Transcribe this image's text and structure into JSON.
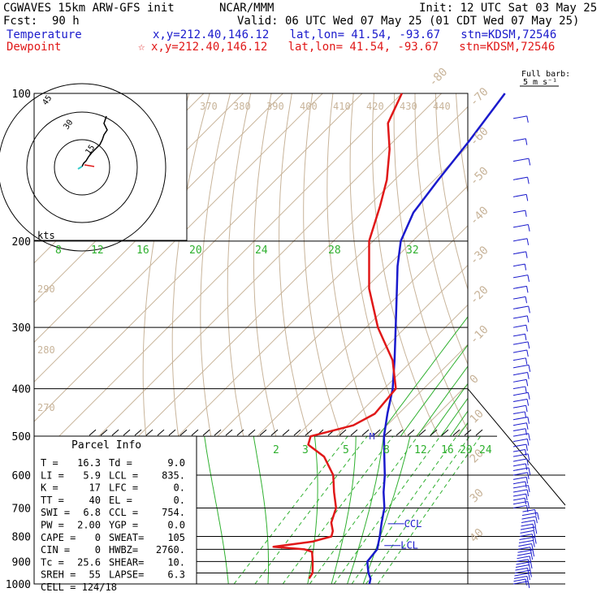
{
  "header": {
    "model": "CGWAVES 15km ARW-GFS init",
    "org": "NCAR/MMM",
    "init": "Init: 12 UTC Sat 03 May 25",
    "fcst_label": "Fcst:",
    "fcst_value": "90 h",
    "valid": "Valid: 06 UTC Wed 07 May 25 (01 CDT Wed 07 May 25)",
    "temp_label": "Temperature",
    "temp_loc": "x,y=212.40,146.12   lat,lon= 41.54, -93.67   stn=KDSM,72546",
    "dew_label": "Dewpoint",
    "dew_star": "☆",
    "dew_loc": "x,y=212.40,146.12   lat,lon= 41.54, -93.67   stn=KDSM,72546"
  },
  "colors": {
    "temperature": "#1a1acc",
    "dewpoint": "#e01818",
    "isotherm": "#c8b49a",
    "dry_adiabat": "#c8b49a",
    "mixing_ratio": "#2fb02f",
    "moist_adiabat": "#2fb02f",
    "isobar": "#000000"
  },
  "chart_data": {
    "type": "line",
    "chart_kind": "skew-T log-P",
    "y_axis": "pressure (hPa), log scale",
    "ylim": [
      1000,
      100
    ],
    "pressure_labels": [
      "100",
      "200",
      "300",
      "400",
      "500",
      "600",
      "700",
      "800",
      "900",
      "1000"
    ],
    "isotherm_labels": [
      "-80",
      "-70",
      "-60",
      "-50",
      "-40",
      "-30",
      "-20",
      "-10",
      "0",
      "10",
      "20",
      "30",
      "40"
    ],
    "theta_labels_top": [
      "370",
      "380",
      "390",
      "400",
      "410",
      "420",
      "430",
      "440"
    ],
    "theta_labels_left": [
      "290",
      "280",
      "270"
    ],
    "mixing_ratio_labels_upper": [
      "8",
      "12",
      "16",
      "20",
      "24",
      "28",
      "32"
    ],
    "mixing_ratio_labels_lower": [
      "2",
      "3",
      "5",
      "8",
      "12",
      "16",
      "20",
      "24"
    ],
    "series": [
      {
        "name": "Temperature",
        "color": "#1a1acc",
        "points": [
          {
            "p": 1000,
            "t": 25.6
          },
          {
            "p": 975,
            "t": 24.5
          },
          {
            "p": 950,
            "t": 22.6
          },
          {
            "p": 925,
            "t": 21.0
          },
          {
            "p": 900,
            "t": 19.4
          },
          {
            "p": 850,
            "t": 18.8
          },
          {
            "p": 800,
            "t": 16.2
          },
          {
            "p": 750,
            "t": 13.2
          },
          {
            "p": 700,
            "t": 10.2
          },
          {
            "p": 650,
            "t": 6.0
          },
          {
            "p": 600,
            "t": 2.0
          },
          {
            "p": 550,
            "t": -2.8
          },
          {
            "p": 500,
            "t": -8.0
          },
          {
            "p": 450,
            "t": -12.8
          },
          {
            "p": 400,
            "t": -17.8
          },
          {
            "p": 350,
            "t": -24.5
          },
          {
            "p": 300,
            "t": -32.5
          },
          {
            "p": 250,
            "t": -42.0
          },
          {
            "p": 225,
            "t": -47.5
          },
          {
            "p": 200,
            "t": -53.0
          },
          {
            "p": 175,
            "t": -57.0
          },
          {
            "p": 150,
            "t": -59.0
          },
          {
            "p": 125,
            "t": -61.0
          },
          {
            "p": 100,
            "t": -64.0
          }
        ]
      },
      {
        "name": "Dewpoint",
        "color": "#e01818",
        "points": [
          {
            "p": 975,
            "t": 9.0
          },
          {
            "p": 950,
            "t": 8.5
          },
          {
            "p": 900,
            "t": 5.6
          },
          {
            "p": 860,
            "t": 3.0
          },
          {
            "p": 850,
            "t": 0.5
          },
          {
            "p": 840,
            "t": -8.0
          },
          {
            "p": 820,
            "t": 0.5
          },
          {
            "p": 800,
            "t": 4.0
          },
          {
            "p": 780,
            "t": 3.0
          },
          {
            "p": 750,
            "t": 0.5
          },
          {
            "p": 700,
            "t": -2.0
          },
          {
            "p": 650,
            "t": -6.5
          },
          {
            "p": 600,
            "t": -11.0
          },
          {
            "p": 550,
            "t": -18.0
          },
          {
            "p": 520,
            "t": -25.0
          },
          {
            "p": 500,
            "t": -26.5
          },
          {
            "p": 475,
            "t": -18.5
          },
          {
            "p": 450,
            "t": -16.0
          },
          {
            "p": 400,
            "t": -17.0
          },
          {
            "p": 350,
            "t": -25.0
          },
          {
            "p": 300,
            "t": -37.0
          },
          {
            "p": 250,
            "t": -49.0
          },
          {
            "p": 200,
            "t": -61.0
          },
          {
            "p": 170,
            "t": -67.0
          },
          {
            "p": 150,
            "t": -72.0
          },
          {
            "p": 130,
            "t": -79.0
          },
          {
            "p": 115,
            "t": -86.0
          },
          {
            "p": 100,
            "t": -90.0
          }
        ]
      }
    ],
    "markers": [
      {
        "label": "CCL",
        "p": 754
      },
      {
        "label": "LCL",
        "p": 835
      },
      {
        "label": "M",
        "p": 500
      }
    ]
  },
  "wind_barbs": {
    "label_line1": "Full barb:",
    "label_line2": "5 m s⁻¹"
  },
  "hodograph": {
    "units_label": "kts",
    "ring_labels": [
      "15",
      "30",
      "45"
    ]
  },
  "parcel_info": {
    "title": "Parcel Info",
    "rows": [
      [
        "T  =",
        "16.3",
        "Td =",
        "9.0"
      ],
      [
        "LI =",
        "5.9",
        "LCL =",
        "835."
      ],
      [
        "K  =",
        "17",
        "LFC =",
        "0."
      ],
      [
        "TT =",
        "40",
        "EL  =",
        "0."
      ],
      [
        "SWI =",
        "6.8",
        "CCL =",
        "754."
      ],
      [
        "PW =",
        "2.00",
        "YGP =",
        "0.0"
      ],
      [
        "CAPE =",
        "0",
        "SWEAT=",
        "105"
      ],
      [
        "CIN =",
        "0",
        "HWBZ=",
        "2760."
      ],
      [
        "Tc =",
        "25.6",
        "SHEAR=",
        "10."
      ],
      [
        "SREH =",
        "55",
        "LAPSE=",
        "6.3"
      ]
    ],
    "cell": "CELL = 124/18"
  }
}
